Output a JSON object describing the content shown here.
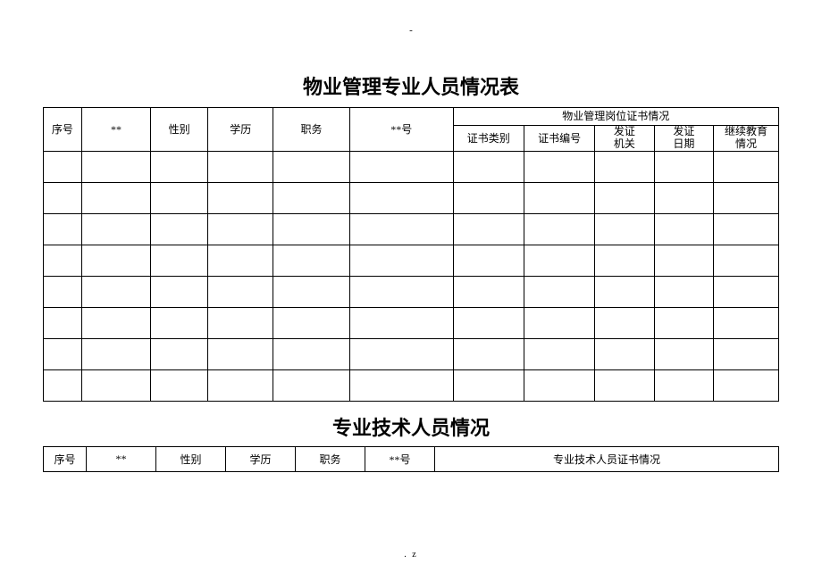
{
  "marks": {
    "top": "-",
    "bottom": ". z"
  },
  "table1": {
    "title": "物业管理专业人员情况表",
    "group_header": "物业管理岗位证书情况",
    "headers": {
      "seq": "序号",
      "name": "**",
      "gender": "性别",
      "education": "学历",
      "position": "职务",
      "id_no": "**号",
      "cert_type": "证书类别",
      "cert_no": "证书编号",
      "issue_org": "发证\n机关",
      "issue_date": "发证\n日期",
      "cont_edu": "继续教育\n情况"
    },
    "body_rows": 8
  },
  "table2": {
    "title": "专业技术人员情况",
    "headers": {
      "seq": "序号",
      "name": "**",
      "gender": "性别",
      "education": "学历",
      "position": "职务",
      "id_no": "**号",
      "cert_info": "专业技术人员证书情况"
    }
  },
  "style": {
    "border_color": "#000000",
    "background": "#ffffff",
    "text_color": "#000000",
    "title_fontsize": 22,
    "cell_fontsize": 12
  }
}
